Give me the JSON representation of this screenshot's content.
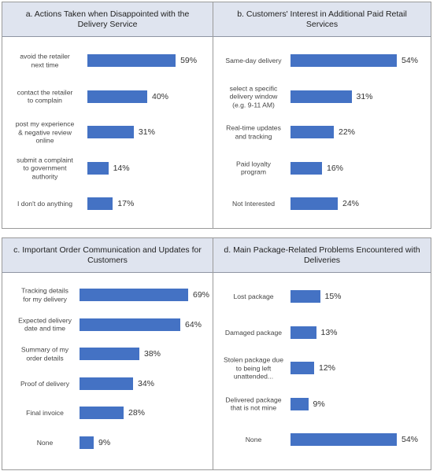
{
  "chart_data": [
    {
      "type": "bar",
      "orientation": "horizontal",
      "title": "a. Actions Taken when Disappointed with the Delivery Service",
      "categories": [
        [
          "avoid the retailer",
          "next time"
        ],
        [
          "contact the retailer",
          "to complain"
        ],
        [
          "post my experience",
          "& negative review",
          "online"
        ],
        [
          "submit a complaint",
          "to government",
          "authority"
        ],
        [
          "I don't do anything"
        ]
      ],
      "values": [
        59,
        40,
        31,
        14,
        17
      ],
      "value_labels": [
        "59%",
        "40%",
        "31%",
        "14%",
        "17%"
      ]
    },
    {
      "type": "bar",
      "orientation": "horizontal",
      "title": "b. Customers' Interest in Additional Paid Retail Services",
      "categories": [
        [
          "Same-day delivery"
        ],
        [
          "select a specific",
          "delivery window",
          "(e.g. 9-11 AM)"
        ],
        [
          "Real-time updates",
          "and tracking"
        ],
        [
          "Paid loyalty",
          "program"
        ],
        [
          "Not Interested"
        ]
      ],
      "values": [
        54,
        31,
        22,
        16,
        24
      ],
      "value_labels": [
        "54%",
        "31%",
        "22%",
        "16%",
        "24%"
      ]
    },
    {
      "type": "bar",
      "orientation": "horizontal",
      "title": "c. Important Order Communication and Updates for Customers",
      "categories": [
        [
          "Tracking details",
          "for my delivery"
        ],
        [
          "Expected delivery",
          "date and time"
        ],
        [
          "Summary of my",
          "order details"
        ],
        [
          "Proof of delivery"
        ],
        [
          "Final invoice"
        ],
        [
          "None"
        ]
      ],
      "values": [
        69,
        64,
        38,
        34,
        28,
        9
      ],
      "value_labels": [
        "69%",
        "64%",
        "38%",
        "34%",
        "28%",
        "9%"
      ]
    },
    {
      "type": "bar",
      "orientation": "horizontal",
      "title": "d. Main Package-Related Problems Encountered with Deliveries",
      "categories": [
        [
          "Lost package"
        ],
        [
          "Damaged package"
        ],
        [
          "Stolen package due",
          "to being left",
          "unattended..."
        ],
        [
          "Delivered package",
          "that is not mine"
        ],
        [
          "None"
        ]
      ],
      "values": [
        15,
        13,
        12,
        9,
        54
      ],
      "value_labels": [
        "15%",
        "13%",
        "12%",
        "9%",
        "54%"
      ]
    }
  ],
  "colors": {
    "bar": "#4472c4",
    "title_band": "#dfe4ef"
  }
}
